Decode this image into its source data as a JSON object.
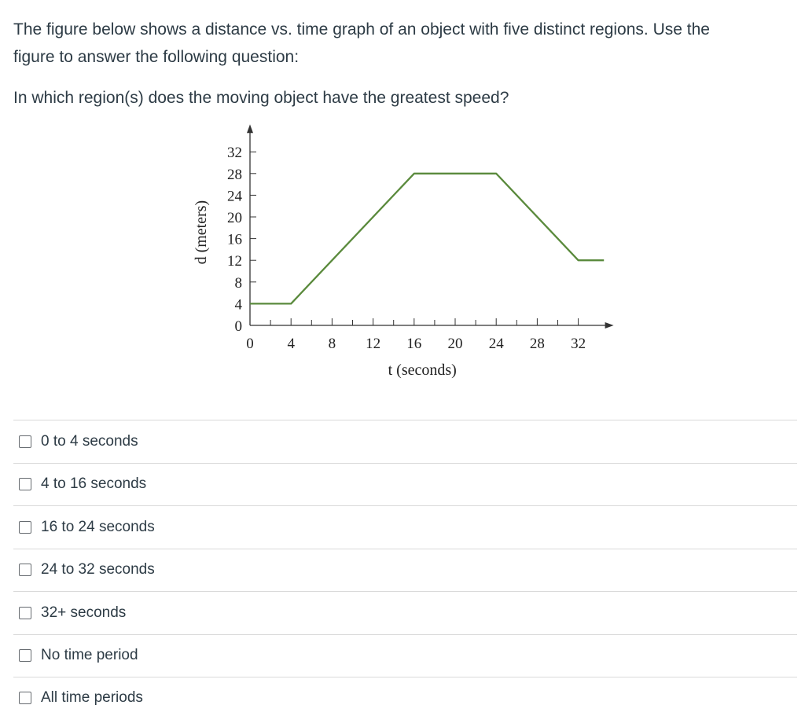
{
  "question": {
    "intro": "The figure below shows a distance vs. time graph of an object with five distinct regions. Use the figure to answer the following question:",
    "intro_line1": "The figure below shows a distance vs. time graph of an object with five distinct regions. Use the",
    "intro_line2": "figure to answer the following question:",
    "prompt": "In which region(s) does the moving object have the greatest speed?"
  },
  "chart_data": {
    "type": "line",
    "title": "",
    "xlabel": "t (seconds)",
    "ylabel": "d (meters)",
    "xlim": [
      0,
      32
    ],
    "ylim": [
      0,
      32
    ],
    "x_ticks": [
      0,
      4,
      8,
      12,
      16,
      20,
      24,
      28,
      32
    ],
    "y_ticks": [
      0,
      4,
      8,
      12,
      16,
      20,
      24,
      28,
      32
    ],
    "series": [
      {
        "color": "#5a8a3c",
        "points": [
          [
            0,
            4
          ],
          [
            4,
            4
          ],
          [
            16,
            28
          ],
          [
            24,
            28
          ],
          [
            32,
            12
          ],
          [
            34.5,
            12
          ]
        ]
      }
    ],
    "grid": false,
    "legend": "none"
  },
  "answers": [
    {
      "label": "0 to 4 seconds",
      "checked": false
    },
    {
      "label": "4 to 16 seconds",
      "checked": false
    },
    {
      "label": "16 to 24 seconds",
      "checked": false
    },
    {
      "label": "24 to 32 seconds",
      "checked": false
    },
    {
      "label": "32+ seconds",
      "checked": false
    },
    {
      "label": "No time period",
      "checked": false
    },
    {
      "label": "All time periods",
      "checked": false
    }
  ]
}
